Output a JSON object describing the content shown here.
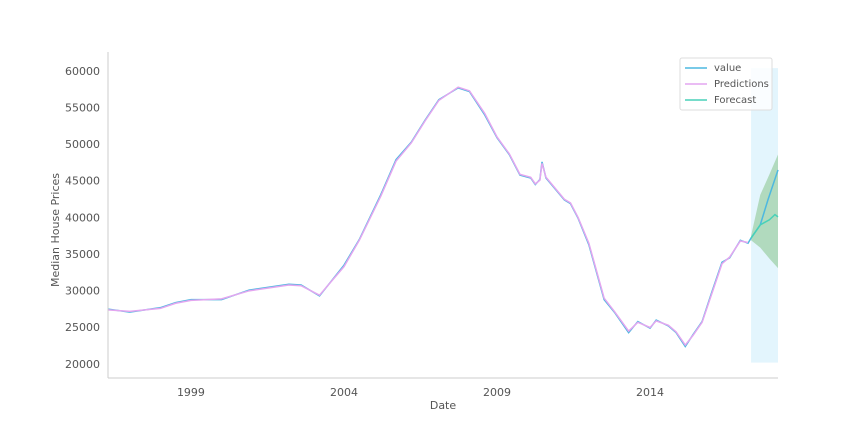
{
  "chart_data": {
    "type": "line",
    "x_label": "Date",
    "y_label": "Median House Prices",
    "xlim": [
      1996.29,
      2018.18
    ],
    "xticks": [
      1999,
      2004,
      2009,
      2014
    ],
    "ylim": [
      18200,
      62700
    ],
    "yticks": [
      20000,
      25000,
      30000,
      35000,
      40000,
      45000,
      50000,
      55000,
      60000
    ],
    "legend": "upper right",
    "span": {
      "color": "#e3f5fd",
      "xrange": [
        2017.3,
        2018.18
      ],
      "yrange": [
        20300,
        60500
      ]
    },
    "band": {
      "color": "#7fbf7f",
      "x": [
        2017.3,
        2017.6,
        2017.9,
        2018.18
      ],
      "lower": [
        37000,
        36000,
        34500,
        33200
      ],
      "upper": [
        37600,
        43200,
        46000,
        48700
      ]
    },
    "series": [
      {
        "name": "value",
        "color": "#4db8e0",
        "x": [
          1996.29,
          1997,
          1998,
          1998.5,
          1999,
          2000,
          2000.9,
          2002.2,
          2002.6,
          2003.2,
          2004,
          2004.5,
          2005.2,
          2005.7,
          2006.2,
          2006.65,
          2007.1,
          2007.73,
          2008.1,
          2008.6,
          2009,
          2009.4,
          2009.75,
          2010.1,
          2010.25,
          2010.4,
          2010.47,
          2010.6,
          2011.2,
          2011.4,
          2011.65,
          2012,
          2012.5,
          2012.85,
          2013.3,
          2013.6,
          2014,
          2014.2,
          2014.6,
          2014.85,
          2015.15,
          2015.4,
          2015.7,
          2016,
          2016.35,
          2016.6,
          2016.95,
          2017.2,
          2017.3,
          2017.6,
          2017.85,
          2018.18
        ],
        "values": [
          27600,
          27200,
          27800,
          28500,
          28900,
          28900,
          30200,
          31000,
          30900,
          29400,
          33600,
          37100,
          43200,
          48000,
          50400,
          53400,
          56200,
          57800,
          57300,
          54100,
          51000,
          48700,
          45900,
          45500,
          44600,
          45300,
          47700,
          45500,
          42500,
          42000,
          40000,
          36400,
          28900,
          27100,
          24400,
          25900,
          25000,
          26100,
          25300,
          24400,
          22500,
          24100,
          25900,
          29700,
          34000,
          34600,
          37000,
          36600,
          37300,
          39100,
          42500,
          46600
        ]
      },
      {
        "name": "Predictions",
        "color": "#e3a6f0",
        "x": [
          1996.29,
          1997,
          1998,
          1998.5,
          1999,
          2000,
          2000.9,
          2002.2,
          2002.6,
          2003.2,
          2004,
          2004.5,
          2005.2,
          2005.7,
          2006.2,
          2006.65,
          2007.1,
          2007.73,
          2008.1,
          2008.6,
          2009,
          2009.4,
          2009.75,
          2010.1,
          2010.25,
          2010.4,
          2010.47,
          2010.6,
          2011.2,
          2011.4,
          2011.65,
          2012,
          2012.5,
          2012.85,
          2013.3,
          2013.6,
          2014,
          2014.2,
          2014.6,
          2014.85,
          2015.15,
          2015.4,
          2015.7,
          2016,
          2016.35,
          2016.6,
          2016.95,
          2017.2
        ],
        "values": [
          27500,
          27300,
          27700,
          28400,
          28800,
          29000,
          30100,
          30900,
          30800,
          29500,
          33400,
          37000,
          43000,
          47800,
          50300,
          53300,
          56100,
          57900,
          57400,
          54300,
          51100,
          48800,
          46000,
          45600,
          44700,
          45200,
          47500,
          45600,
          42600,
          42100,
          40100,
          36600,
          29100,
          27200,
          24600,
          25800,
          25100,
          26000,
          25400,
          24500,
          22700,
          24000,
          25800,
          29500,
          33800,
          34700,
          36900,
          36700
        ]
      },
      {
        "name": "Forecast",
        "color": "#48d1b8",
        "x": [
          2017.3,
          2017.6,
          2017.9,
          2018.08,
          2018.18
        ],
        "values": [
          37300,
          39100,
          39800,
          40500,
          40200
        ]
      }
    ]
  }
}
